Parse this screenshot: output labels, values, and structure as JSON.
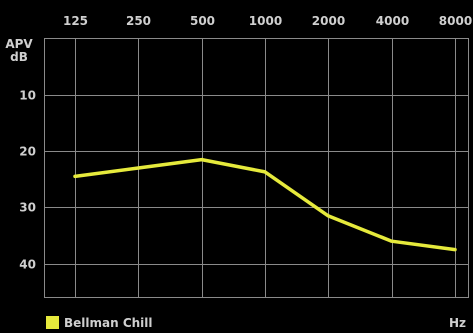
{
  "chart_data": {
    "type": "line",
    "x_unit": "Hz",
    "y_unit_line1": "APV",
    "y_unit_line2": "dB",
    "x_scale": "log",
    "x_ticks": [
      "125",
      "250",
      "500",
      "1000",
      "2000",
      "4000",
      "8000"
    ],
    "y_ticks": [
      "10",
      "20",
      "30",
      "40"
    ],
    "y_inverted": true,
    "ylim": [
      0,
      46
    ],
    "grid": true,
    "legend_position": "bottom-left",
    "series": [
      {
        "name": "Bellman Chill",
        "color": "#e6ea3c",
        "x": [
          125,
          250,
          500,
          1000,
          2000,
          4000,
          8000
        ],
        "y": [
          24.5,
          23,
          21.5,
          23.7,
          31.5,
          36,
          37.5
        ]
      }
    ]
  }
}
